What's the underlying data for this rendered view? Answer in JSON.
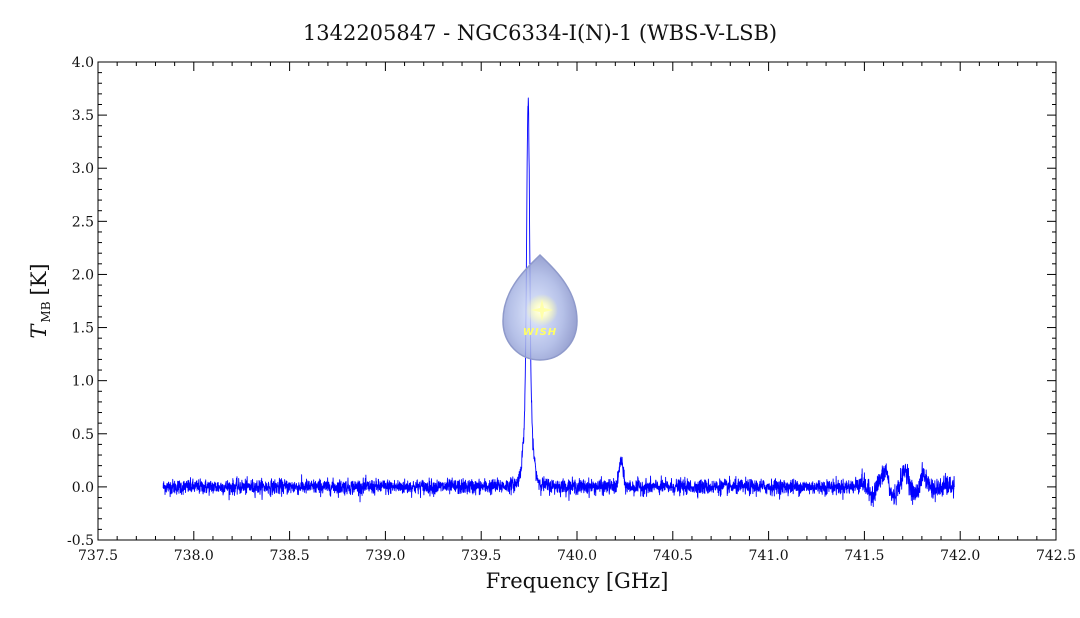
{
  "chart_data": {
    "type": "line",
    "title": "1342205847 - NGC6334-I(N)-1 (WBS-V-LSB)",
    "xlabel": "Frequency [GHz]",
    "ylabel": {
      "symbol": "T",
      "subscript": "MB",
      "unit": "[K]"
    },
    "xlim": [
      737.5,
      742.5
    ],
    "ylim": [
      -0.5,
      4.0
    ],
    "x_ticks": [
      737.5,
      738.0,
      738.5,
      739.0,
      739.5,
      740.0,
      740.5,
      741.0,
      741.5,
      742.0,
      742.5
    ],
    "x_tick_labels": [
      "737.5",
      "738.0",
      "738.5",
      "739.0",
      "739.5",
      "740.0",
      "740.5",
      "741.0",
      "741.5",
      "742.0",
      "742.5"
    ],
    "y_ticks": [
      -0.5,
      0.0,
      0.5,
      1.0,
      1.5,
      2.0,
      2.5,
      3.0,
      3.5,
      4.0
    ],
    "y_tick_labels": [
      "-0.5",
      "0.0",
      "0.5",
      "1.0",
      "1.5",
      "2.0",
      "2.5",
      "3.0",
      "3.5",
      "4.0"
    ],
    "grid": false,
    "series": [
      {
        "color": "#0000ff",
        "x_range": [
          737.84,
          741.97
        ],
        "baseline": 0.0,
        "noise_rms": 0.035,
        "features": [
          {
            "kind": "main_line",
            "center": 739.745,
            "peak": 3.5
          },
          {
            "kind": "secondary_line",
            "center": 740.23,
            "peak": 0.27
          },
          {
            "kind": "weak_features",
            "range": [
              741.45,
              741.95
            ],
            "peak": 0.25
          }
        ]
      }
    ]
  },
  "logo": {
    "text": "WISH"
  }
}
